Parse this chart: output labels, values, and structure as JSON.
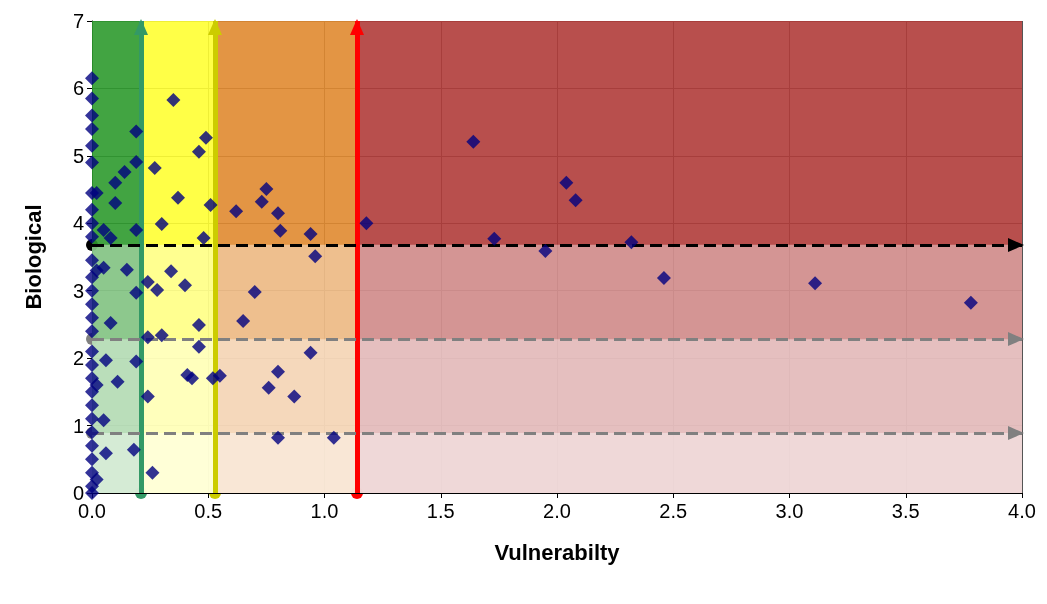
{
  "chart_data": {
    "type": "scatter",
    "xlabel": "Vulnerabilty",
    "ylabel": "Biological",
    "series": [
      {
        "color": "#000080",
        "x": [
          1.64,
          2.04,
          2.08,
          1.73,
          1.95,
          2.32,
          2.46,
          3.11,
          3.78,
          1.18,
          0.75,
          0.73,
          0.62,
          0.8,
          0.81,
          0.94,
          0.96,
          0.7,
          0.65,
          0.94,
          0.8,
          0.76,
          0.87,
          0.55,
          0.8,
          1.04,
          0.35,
          0.49,
          0.46,
          0.27,
          0.37,
          0.3,
          0.48,
          0.51,
          0.14,
          0.1,
          0.1,
          0.19,
          0.19,
          0.05,
          0.19,
          0.08,
          0.34,
          0.4,
          0.28,
          0.24,
          0.46,
          0.3,
          0.24,
          0.15,
          0.05,
          0.08,
          0.19,
          0.46,
          0.43,
          0.41,
          0.52,
          0.24,
          0.26,
          0.06,
          0.11,
          0.19,
          0.05,
          0.18,
          0.06,
          0,
          0,
          0,
          0,
          0,
          0,
          0,
          0,
          0,
          0,
          0,
          0,
          0,
          0,
          0,
          0,
          0,
          0,
          0,
          0,
          0,
          0,
          0,
          0,
          0,
          0,
          0,
          0,
          0.02,
          0.02,
          0.02,
          0.02
        ],
        "values": [
          5.21,
          4.6,
          4.34,
          3.77,
          3.59,
          3.72,
          3.19,
          3.11,
          2.82,
          4.0,
          4.51,
          4.32,
          4.18,
          4.15,
          3.89,
          3.84,
          3.51,
          2.98,
          2.55,
          2.08,
          1.8,
          1.56,
          1.43,
          1.74,
          0.82,
          0.82,
          5.83,
          5.27,
          5.06,
          4.82,
          4.38,
          3.99,
          3.78,
          4.27,
          4.76,
          4.6,
          4.3,
          5.36,
          4.91,
          3.9,
          3.9,
          3.78,
          3.29,
          3.08,
          3.01,
          3.13,
          2.49,
          2.34,
          2.31,
          3.31,
          3.34,
          2.52,
          2.97,
          2.17,
          1.7,
          1.75,
          1.7,
          1.43,
          0.3,
          1.97,
          1.65,
          1.95,
          1.08,
          0.64,
          0.59,
          6.15,
          5.85,
          5.6,
          5.4,
          5.15,
          4.9,
          4.45,
          4.2,
          4.0,
          3.8,
          3.45,
          3.2,
          3.0,
          2.8,
          2.6,
          2.4,
          2.1,
          1.9,
          1.7,
          1.5,
          1.3,
          1.1,
          0.9,
          0.7,
          0.5,
          0.3,
          0.1,
          0.0,
          4.45,
          3.3,
          1.6,
          0.2
        ]
      }
    ],
    "xlim": [
      0,
      4
    ],
    "ylim": [
      0,
      7
    ],
    "xticks": [
      {
        "value": 0,
        "label": "0.0"
      },
      0.5,
      {
        "value": 1,
        "label": "1.0"
      },
      1.5,
      {
        "value": 2,
        "label": "2.0"
      },
      2.5,
      {
        "value": 3,
        "label": "3.0"
      },
      3.5,
      {
        "value": 4,
        "label": "4.0"
      }
    ],
    "yticks": [
      0,
      1,
      2,
      3,
      4,
      5,
      6,
      7
    ],
    "grid": true,
    "marker": "diamond",
    "bands": [
      {
        "axis": "x",
        "from": 0,
        "to": 0.21,
        "color": "#2e9a2e",
        "label": null
      },
      {
        "axis": "x",
        "from": 0.21,
        "to": 0.53,
        "color": "#ffff33",
        "label": null
      },
      {
        "axis": "x",
        "from": 0.53,
        "to": 1.14,
        "color": "#e08a30",
        "label": null
      },
      {
        "axis": "x",
        "from": 1.14,
        "to": 4,
        "color": "#b03c3a",
        "label": null
      },
      {
        "axis": "y",
        "from": 0,
        "to": 3.68,
        "color": "#ffffff",
        "label": null
      },
      {
        "axis": "y",
        "from": 0,
        "to": 2.28,
        "color": "#ffffff",
        "label": null
      },
      {
        "axis": "y",
        "from": 0,
        "to": 0.89,
        "color": "#ffffff",
        "label": null
      }
    ],
    "ref_lines": [
      {
        "axis": "x",
        "value": 0.21,
        "label": null,
        "color": "#339966",
        "line_style": "solid"
      },
      {
        "axis": "x",
        "value": 0.53,
        "label": null,
        "color": "#cccc00",
        "line_style": "solid"
      },
      {
        "axis": "x",
        "value": 1.14,
        "label": null,
        "color": "#ff0000",
        "line_style": "solid"
      },
      {
        "axis": "y",
        "value": 3.68,
        "label": null,
        "color": "#000000",
        "line_style": "dashed"
      },
      {
        "axis": "y",
        "value": 2.28,
        "label": null,
        "color": "#808080",
        "line_style": "dashed"
      },
      {
        "axis": "y",
        "value": 0.89,
        "label": null,
        "color": "#808080",
        "line_style": "dashed"
      }
    ]
  }
}
